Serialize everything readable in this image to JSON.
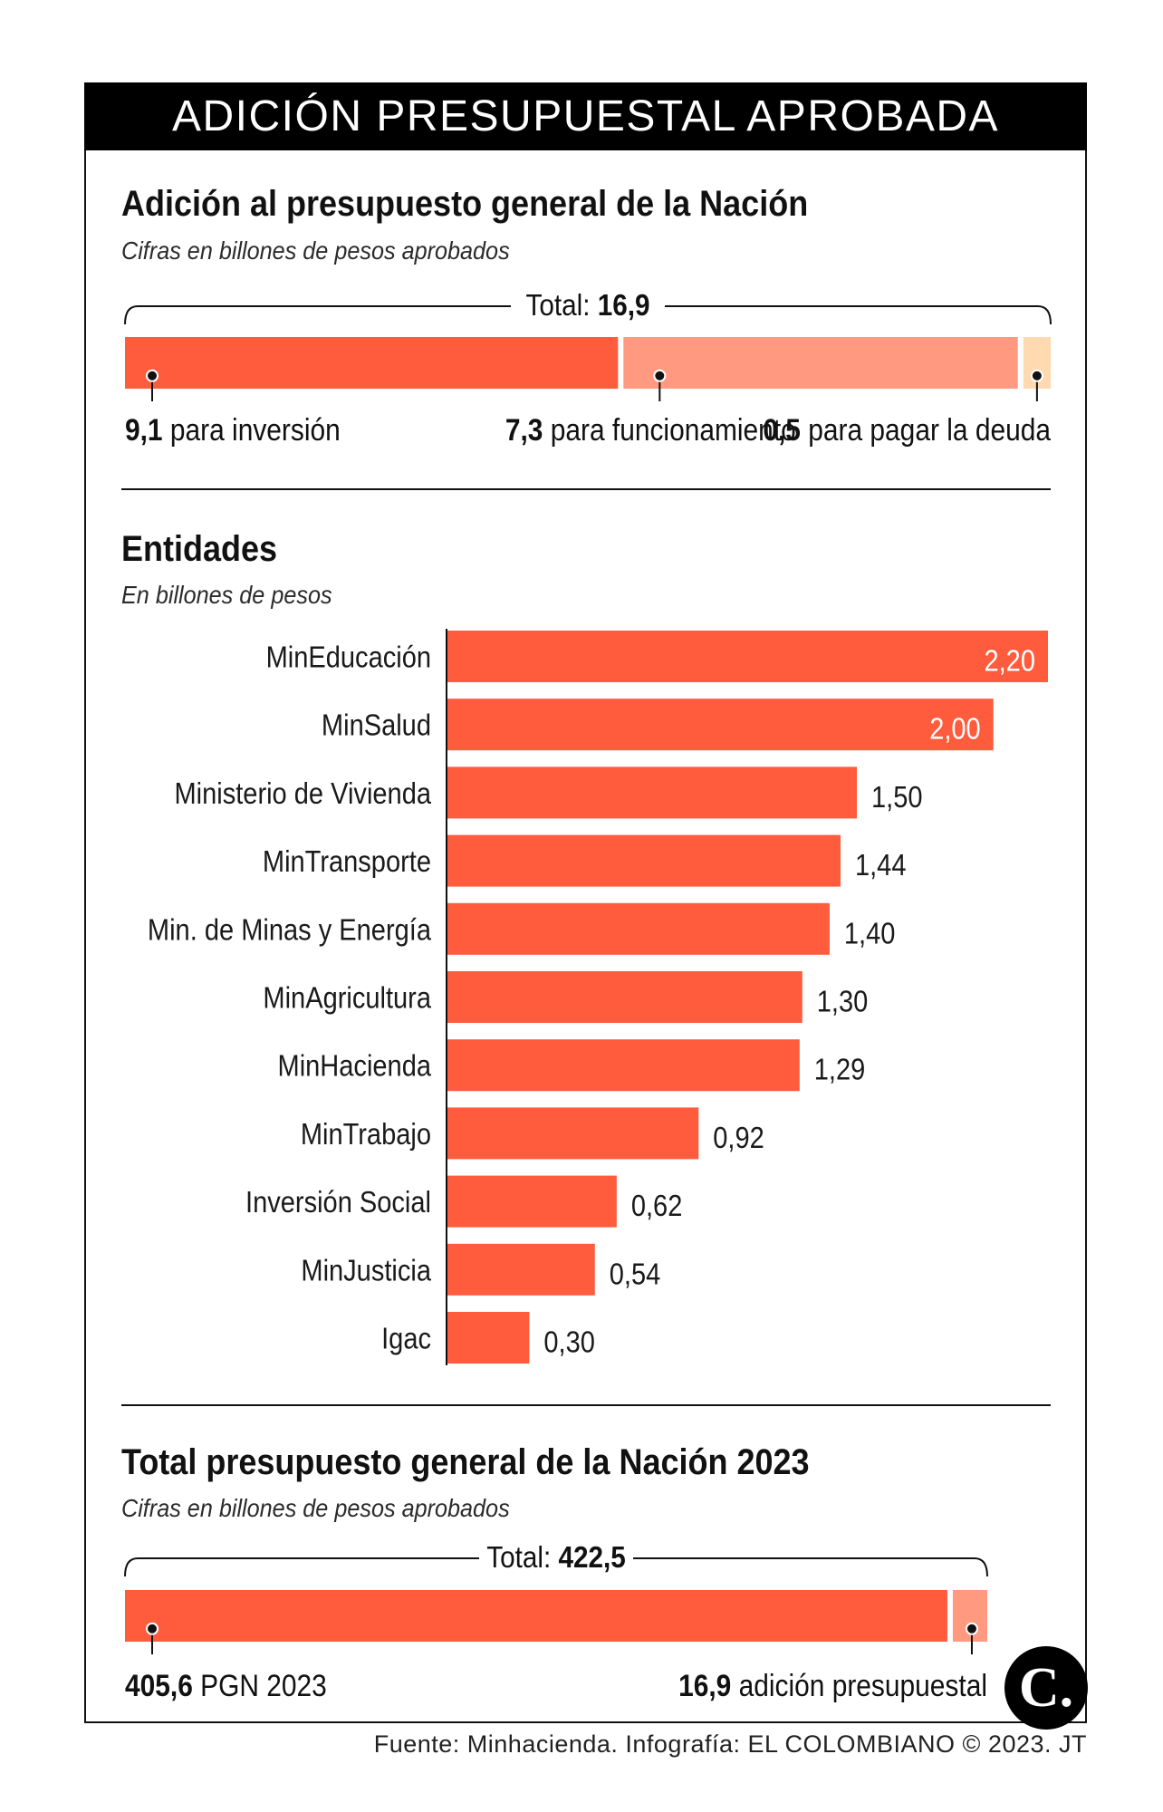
{
  "header": {
    "title": "ADICIÓN PRESUPUESTAL APROBADA"
  },
  "colors": {
    "primary": "#ff5b3d",
    "secondary": "#ff9a80",
    "tertiary": "#ffd9b0",
    "dark": "#111111"
  },
  "chart_data": [
    {
      "type": "bar",
      "orientation": "stacked-horizontal",
      "title": "Adición al presupuesto general de la Nación",
      "subtitle": "Cifras en billones de pesos aprobados",
      "total_label": "Total:",
      "total_value": "16,9",
      "total": 16.9,
      "segments": [
        {
          "value": 9.1,
          "value_label": "9,1",
          "label": "para inversión",
          "color": "#ff5b3d"
        },
        {
          "value": 7.3,
          "value_label": "7,3",
          "label": "para funcionamiento",
          "color": "#ff9a80"
        },
        {
          "value": 0.5,
          "value_label": "0,5",
          "label": "para pagar la deuda",
          "color": "#ffd9b0"
        }
      ]
    },
    {
      "type": "bar",
      "orientation": "horizontal",
      "title": "Entidades",
      "subtitle": "En billones de pesos",
      "categories": [
        "MinEducación",
        "MinSalud",
        "Ministerio de Vivienda",
        "MinTransporte",
        "Min. de Minas y Energía",
        "MinAgricultura",
        "MinHacienda",
        "MinTrabajo",
        "Inversión Social",
        "MinJusticia",
        "Igac"
      ],
      "values": [
        2.2,
        2.0,
        1.5,
        1.44,
        1.4,
        1.3,
        1.29,
        0.92,
        0.62,
        0.54,
        0.3
      ],
      "value_labels": [
        "2,20",
        "2,00",
        "1,50",
        "1,44",
        "1,40",
        "1,30",
        "1,29",
        "0,92",
        "0,62",
        "0,54",
        "0,30"
      ],
      "xlim": [
        0,
        2.2
      ],
      "color": "#ff5b3d"
    },
    {
      "type": "bar",
      "orientation": "stacked-horizontal",
      "title": "Total presupuesto general de la Nación 2023",
      "subtitle": "Cifras en billones de pesos aprobados",
      "total_label": "Total:",
      "total_value": "422,5",
      "total": 422.5,
      "segments": [
        {
          "value": 405.6,
          "value_label": "405,6",
          "label": "PGN 2023",
          "color": "#ff5b3d"
        },
        {
          "value": 16.9,
          "value_label": "16,9",
          "label": "adición presupuestal",
          "color": "#ff9a80"
        }
      ]
    }
  ],
  "footer": {
    "source": "Fuente: Minhacienda. Infografía: EL COLOMBIANO © 2023. JT",
    "logo": "C."
  }
}
